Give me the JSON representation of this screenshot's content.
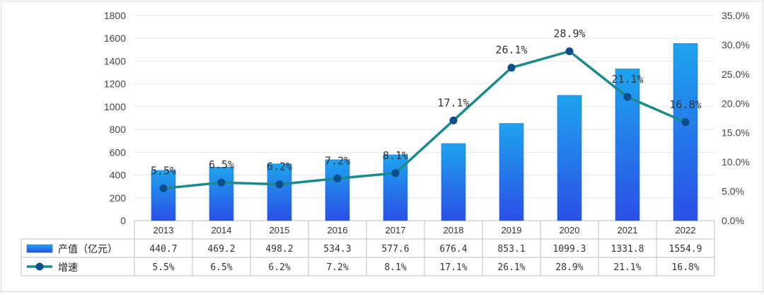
{
  "chart_data": {
    "type": "bar+line",
    "categories": [
      "2013",
      "2014",
      "2015",
      "2016",
      "2017",
      "2018",
      "2019",
      "2020",
      "2021",
      "2022"
    ],
    "series": [
      {
        "name": "产值（亿元）",
        "type": "bar",
        "axis": "left",
        "values": [
          440.7,
          469.2,
          498.2,
          534.3,
          577.6,
          676.4,
          853.1,
          1099.3,
          1331.8,
          1554.9
        ],
        "table_values": [
          "440.7",
          "469.2",
          "498.2",
          "534.3",
          "577.6",
          "676.4",
          "853.1",
          "1099.3",
          "1331.8",
          "1554.9"
        ]
      },
      {
        "name": "增速",
        "type": "line",
        "axis": "right",
        "values": [
          5.5,
          6.5,
          6.2,
          7.2,
          8.1,
          17.1,
          26.1,
          28.9,
          21.1,
          16.8
        ],
        "labels": [
          "5.5%",
          "6.5%",
          "6.2%",
          "7.2%",
          "8.1%",
          "17.1%",
          "26.1%",
          "28.9%",
          "21.1%",
          "16.8%"
        ]
      }
    ],
    "y_left": {
      "ylim": [
        0,
        1800
      ],
      "ticks": [
        "0",
        "200",
        "400",
        "600",
        "800",
        "1000",
        "1200",
        "1400",
        "1600",
        "1800"
      ]
    },
    "y_right": {
      "ylim": [
        0,
        35
      ],
      "ticks": [
        "0.0%",
        "5.0%",
        "10.0%",
        "15.0%",
        "20.0%",
        "25.0%",
        "30.0%",
        "35.0%"
      ]
    },
    "grid": true,
    "legend": "data-table",
    "colors": {
      "bar_top": "#1ea4ee",
      "bar_bottom": "#2a4fe6",
      "line": "#1a8a8c",
      "marker": "#0d4d8a"
    }
  }
}
